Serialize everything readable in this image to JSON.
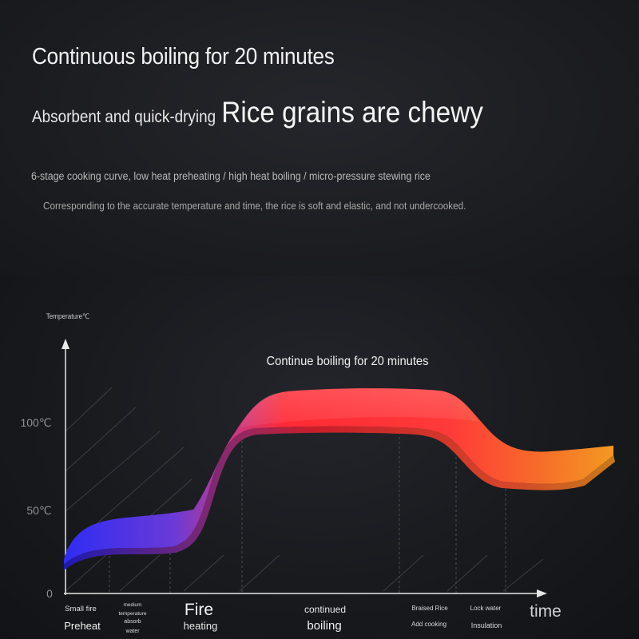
{
  "header": {
    "headline": "Continuous boiling for 20 minutes",
    "sub_small": "Absorbent and quick-drying",
    "sub_big": "Rice grains are chewy",
    "description_1": "6-stage cooking curve, low heat preheating / high heat boiling / micro-pressure stewing rice",
    "description_2": "Corresponding to the accurate temperature and time, the rice is soft and elastic, and not undercooked."
  },
  "chart_data": {
    "type": "area",
    "ylabel": "Temperature℃",
    "xlabel": "time",
    "annotation": "Continue boiling for 20 minutes",
    "y_ticks": [
      "100℃",
      "50℃",
      "0"
    ],
    "stages": [
      {
        "line1": "Small fire",
        "line2": "Preheat"
      },
      {
        "line1": "medium temperature",
        "line2": "absorb water"
      },
      {
        "line1": "Fire",
        "line2": "heating"
      },
      {
        "line1": "continued",
        "line2": "boiling"
      },
      {
        "line1": "Braised Rice",
        "line2": "Add cooking"
      },
      {
        "line1": "Lock water",
        "line2": "Insulation"
      }
    ]
  },
  "colors": {
    "curve_start": "#3326f2",
    "curve_mid": "#ff2b3a",
    "curve_end": "#f79a1c"
  }
}
